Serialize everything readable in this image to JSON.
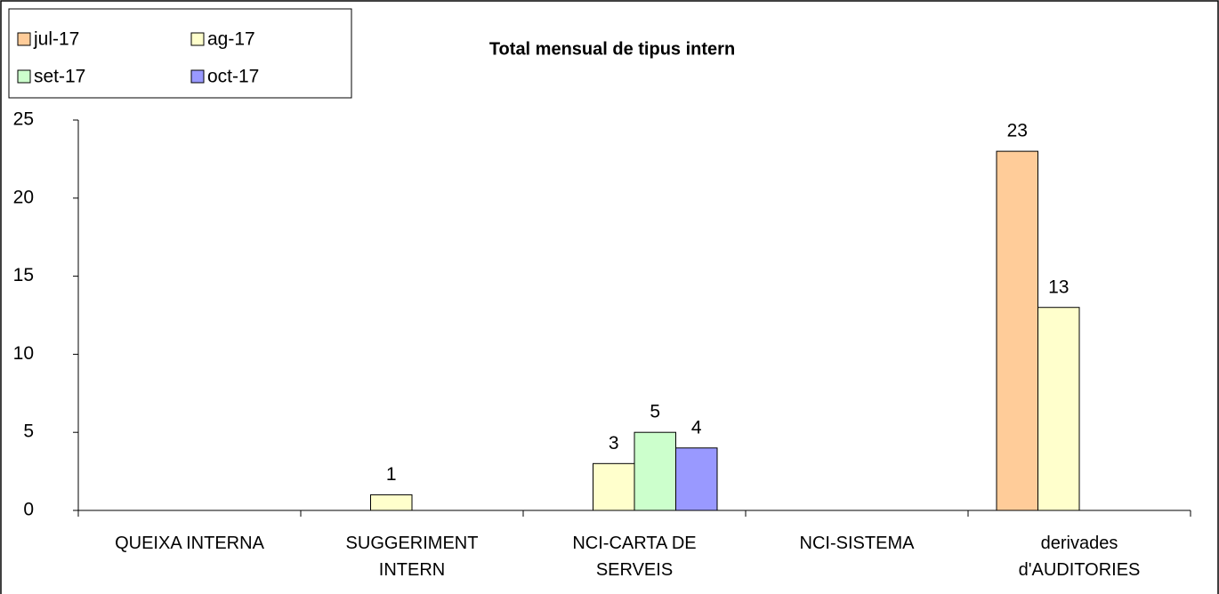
{
  "chart_data": {
    "type": "bar",
    "title": "Total mensual de tipus intern",
    "categories": [
      "QUEIXA INTERNA",
      "SUGGERIMENT INTERN",
      "NCI-CARTA DE SERVEIS",
      "NCI-SISTEMA",
      "derivades d'AUDITORIES"
    ],
    "series": [
      {
        "name": "jul-17",
        "color": "#ffcc99",
        "values": [
          null,
          null,
          null,
          null,
          23
        ]
      },
      {
        "name": "ag-17",
        "color": "#ffffcc",
        "values": [
          null,
          1,
          3,
          null,
          13
        ]
      },
      {
        "name": "set-17",
        "color": "#ccffcc",
        "values": [
          null,
          null,
          5,
          null,
          null
        ]
      },
      {
        "name": "oct-17",
        "color": "#9999ff",
        "values": [
          null,
          null,
          4,
          null,
          null
        ]
      }
    ],
    "ylim": [
      0,
      25
    ],
    "yticks": [
      0,
      5,
      10,
      15,
      20,
      25
    ],
    "grid": false,
    "legend": "top-left"
  }
}
